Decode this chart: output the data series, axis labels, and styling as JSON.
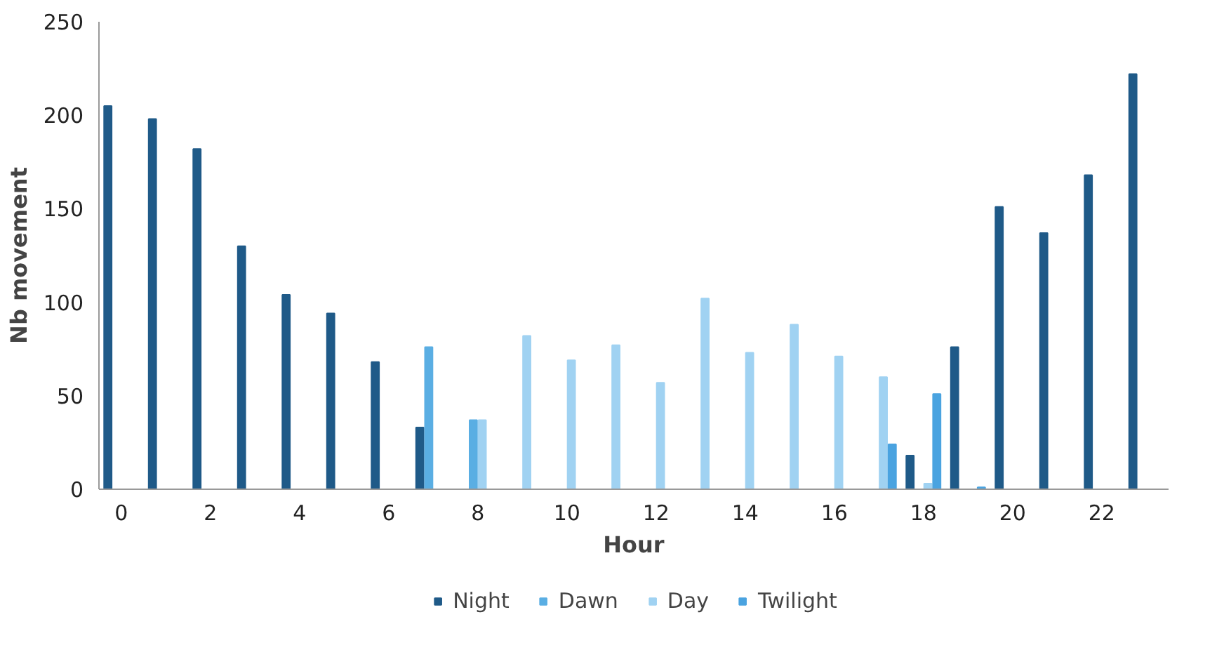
{
  "chart_data": {
    "type": "bar",
    "xlabel": "Hour",
    "ylabel": "Nb movement",
    "categories": [
      "0",
      null,
      "2",
      null,
      "4",
      null,
      "6",
      null,
      "8",
      null,
      "10",
      null,
      "12",
      null,
      "14",
      null,
      "16",
      null,
      "18",
      null,
      "20",
      null,
      "22",
      null
    ],
    "series": [
      {
        "name": "Night",
        "color": "#1f5a88",
        "values": [
          205,
          198,
          182,
          130,
          104,
          94,
          68,
          33,
          null,
          null,
          null,
          null,
          null,
          null,
          null,
          null,
          null,
          null,
          18,
          76,
          151,
          137,
          168,
          222
        ]
      },
      {
        "name": "Dawn",
        "color": "#5aaee3",
        "values": [
          null,
          null,
          null,
          null,
          null,
          null,
          null,
          76,
          37,
          null,
          null,
          null,
          null,
          null,
          null,
          null,
          null,
          null,
          null,
          null,
          null,
          null,
          null,
          null
        ]
      },
      {
        "name": "Day",
        "color": "#a0d2f2",
        "values": [
          null,
          null,
          null,
          null,
          null,
          null,
          null,
          null,
          37,
          82,
          69,
          77,
          57,
          102,
          73,
          88,
          71,
          60,
          3,
          null,
          null,
          null,
          null,
          null
        ]
      },
      {
        "name": "Twilight",
        "color": "#4aa3e0",
        "values": [
          null,
          null,
          null,
          null,
          null,
          null,
          null,
          null,
          null,
          null,
          null,
          null,
          null,
          null,
          null,
          null,
          null,
          24,
          51,
          1,
          null,
          null,
          null,
          null
        ]
      }
    ],
    "ylim": [
      0,
      250
    ],
    "yticks": [
      0,
      50,
      100,
      150,
      200,
      250
    ],
    "grid": false,
    "legend": "bottom"
  }
}
